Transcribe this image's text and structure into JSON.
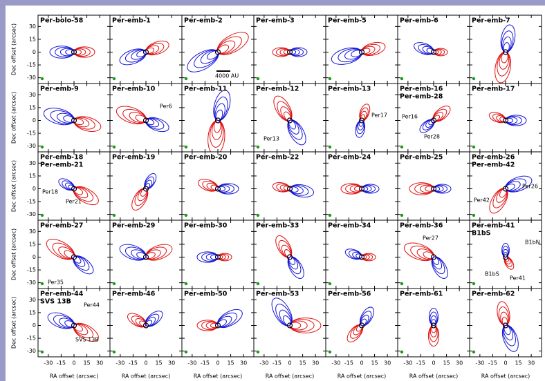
{
  "figure": {
    "axes": {
      "xticks": [
        -30,
        -15,
        0,
        15,
        30
      ],
      "yticks": [
        30,
        15,
        0,
        -15,
        -30
      ],
      "xlabel": "RA offset (arcsec)",
      "ylabel": "Dec offset (arcsec)"
    },
    "panels": [
      {
        "title": [
          "Per-bolo-58"
        ]
      },
      {
        "title": [
          "Per-emb-1"
        ]
      },
      {
        "title": [
          "Per-emb-2"
        ],
        "annotations": [
          "4000 AU"
        ]
      },
      {
        "title": [
          "Per-emb-3"
        ]
      },
      {
        "title": [
          "Per-emb-5"
        ]
      },
      {
        "title": [
          "Per-emb-6"
        ]
      },
      {
        "title": [
          "Per-emb-7"
        ]
      },
      {
        "title": [
          "Per-emb-9"
        ]
      },
      {
        "title": [
          "Per-emb-10"
        ],
        "annotations": [
          "Per6"
        ]
      },
      {
        "title": [
          "Per-emb-11"
        ]
      },
      {
        "title": [
          "Per-emb-12"
        ],
        "annotations": [
          "Per13"
        ]
      },
      {
        "title": [
          "Per-emb-13"
        ],
        "annotations": [
          "Per17"
        ]
      },
      {
        "title": [
          "Per-emb-16",
          "Per-emb-28"
        ],
        "annotations": [
          "Per16",
          "Per28"
        ]
      },
      {
        "title": [
          "Per-emb-17"
        ]
      },
      {
        "title": [
          "Per-emb-18",
          "Per-emb-21"
        ],
        "annotations": [
          "Per18",
          "Per21"
        ]
      },
      {
        "title": [
          "Per-emb-19"
        ]
      },
      {
        "title": [
          "Per-emb-20"
        ]
      },
      {
        "title": [
          "Per-emb-22"
        ]
      },
      {
        "title": [
          "Per-emb-24"
        ]
      },
      {
        "title": [
          "Per-emb-25"
        ]
      },
      {
        "title": [
          "Per-emb-26",
          "Per-emb-42"
        ],
        "annotations": [
          "Per26",
          "Per42"
        ]
      },
      {
        "title": [
          "Per-emb-27"
        ],
        "annotations": [
          "Per35"
        ]
      },
      {
        "title": [
          "Per-emb-29"
        ]
      },
      {
        "title": [
          "Per-emb-30"
        ]
      },
      {
        "title": [
          "Per-emb-33"
        ]
      },
      {
        "title": [
          "Per-emb-34"
        ]
      },
      {
        "title": [
          "Per-emb-36"
        ],
        "annotations": [
          "Per27"
        ]
      },
      {
        "title": [
          "Per-emb-41",
          "B1bS"
        ],
        "annotations": [
          "B1bN",
          "B1bS",
          "Per41"
        ]
      },
      {
        "title": [
          "Per-emb-44",
          "SVS 13B"
        ],
        "annotations": [
          "Per44",
          "SVS 13B"
        ]
      },
      {
        "title": [
          "Per-emb-46"
        ]
      },
      {
        "title": [
          "Per-emb-50"
        ]
      },
      {
        "title": [
          "Per-emb-53"
        ]
      },
      {
        "title": [
          "Per-emb-56"
        ]
      },
      {
        "title": [
          "Per-emb-61"
        ]
      },
      {
        "title": [
          "Per-emb-62"
        ]
      }
    ]
  }
}
